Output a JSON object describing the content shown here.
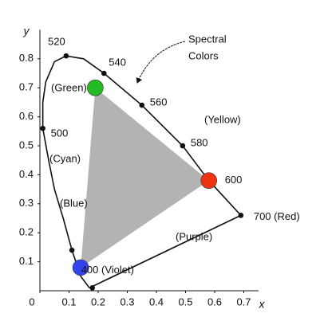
{
  "chart_data": {
    "type": "chromaticity",
    "x_label": "x",
    "y_label": "y",
    "xlim": [
      0,
      0.75
    ],
    "ylim": [
      0,
      0.9
    ],
    "xticks": [
      0,
      0.1,
      0.2,
      0.3,
      0.4,
      0.5,
      0.6,
      0.7
    ],
    "yticks": [
      0.1,
      0.2,
      0.3,
      0.4,
      0.5,
      0.6,
      0.7,
      0.8
    ],
    "locus": {
      "x": [
        0.17,
        0.14,
        0.11,
        0.08,
        0.05,
        0.03,
        0.01,
        0.01,
        0.02,
        0.05,
        0.09,
        0.15,
        0.22,
        0.35,
        0.49,
        0.58,
        0.69,
        0.17
      ],
      "y": [
        0.01,
        0.05,
        0.14,
        0.25,
        0.35,
        0.45,
        0.56,
        0.65,
        0.72,
        0.79,
        0.81,
        0.8,
        0.75,
        0.64,
        0.5,
        0.38,
        0.26,
        0.01
      ]
    },
    "markers": [
      {
        "label": "520",
        "x": 0.09,
        "y": 0.81
      },
      {
        "label": "540",
        "x": 0.22,
        "y": 0.75
      },
      {
        "label": "560",
        "x": 0.35,
        "y": 0.64
      },
      {
        "label": "580",
        "x": 0.49,
        "y": 0.5
      },
      {
        "label": "500",
        "x": 0.01,
        "y": 0.56
      },
      {
        "label": "600",
        "x": 0.58,
        "y": 0.38
      },
      {
        "label": "700 (Red)",
        "x": 0.69,
        "y": 0.26
      },
      {
        "label": "400 (Violet)",
        "x": 0.18,
        "y": 0.01
      },
      {
        "label": null,
        "x": 0.11,
        "y": 0.14
      }
    ],
    "primaries": {
      "x": [
        0.19,
        0.58,
        0.14
      ],
      "y": [
        0.7,
        0.38,
        0.08
      ],
      "colors": [
        "#22bb22",
        "#ee3311",
        "#3344ee"
      ],
      "triangle_color": "#b3b3b3"
    },
    "region_labels": [
      "(Green)",
      "(Yellow)",
      "(Cyan)",
      "(Blue)",
      "(Purple)"
    ],
    "annotation": [
      "Spectral",
      "Colors"
    ]
  }
}
